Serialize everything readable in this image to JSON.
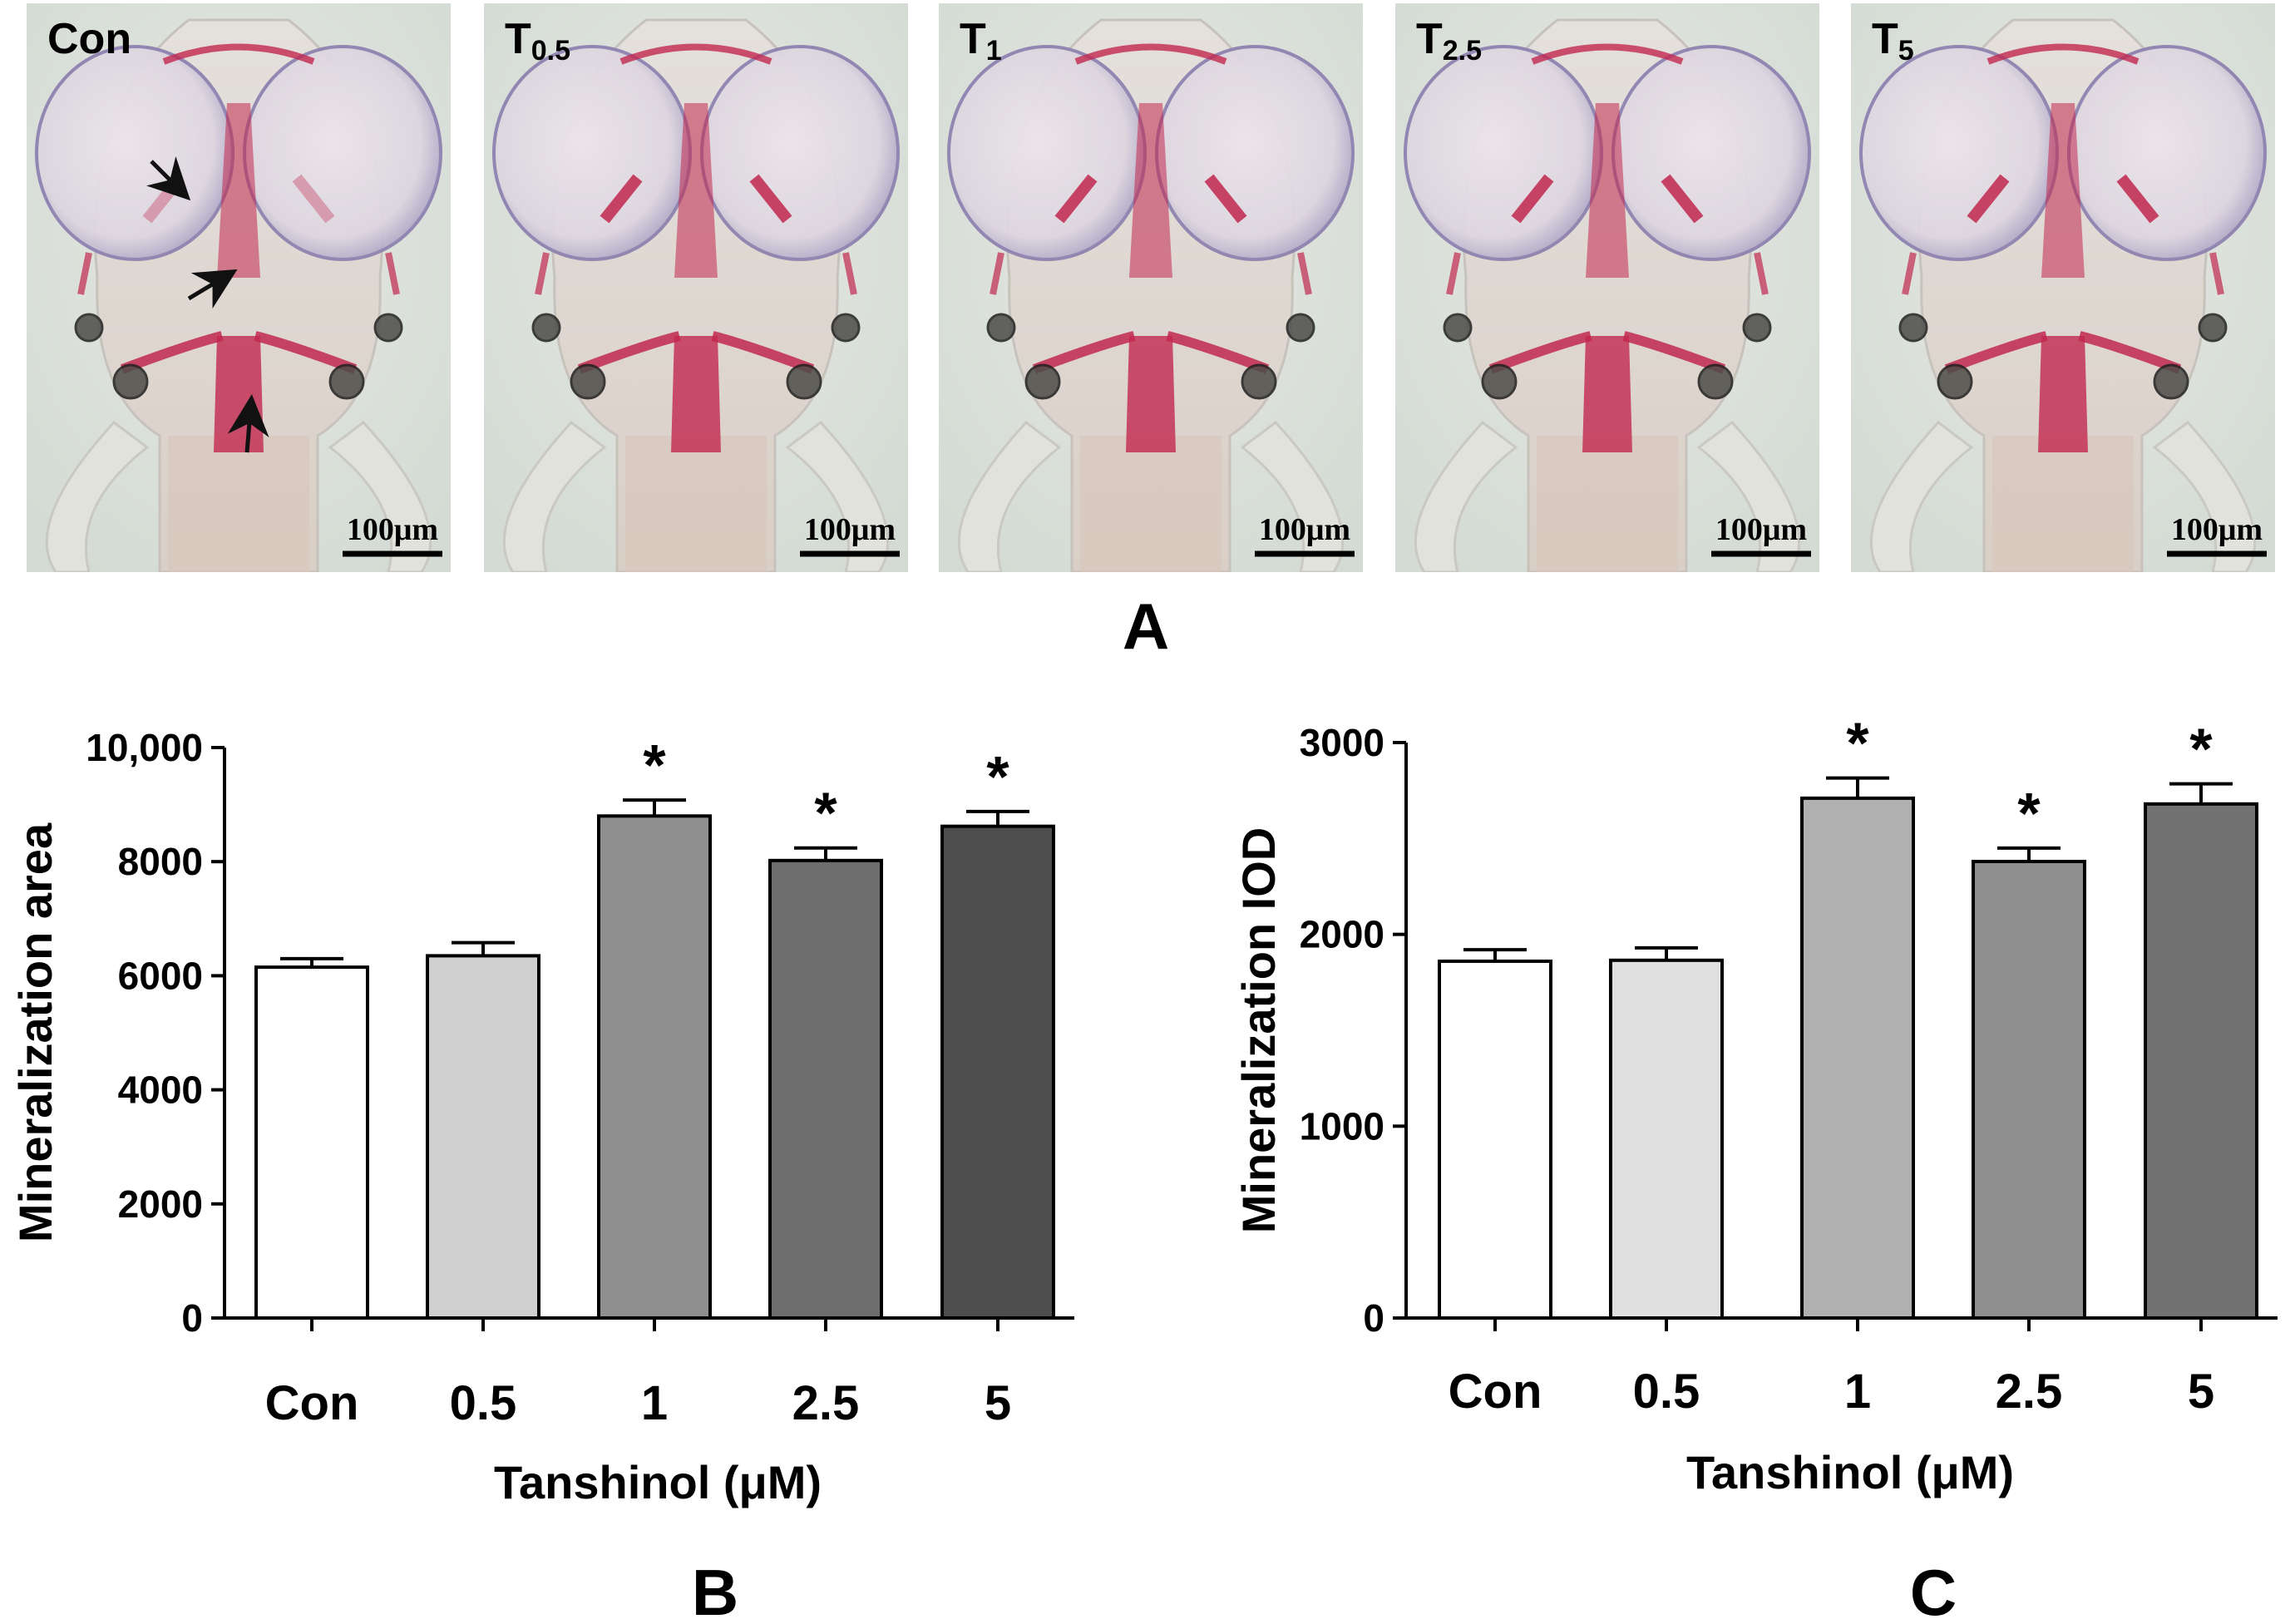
{
  "panel_a": {
    "letter": "A",
    "images": [
      {
        "label": "Con",
        "sub": "",
        "scale": "100μm",
        "arrows": true
      },
      {
        "label": "T",
        "sub": "0.5",
        "scale": "100μm",
        "arrows": false
      },
      {
        "label": "T",
        "sub": "1",
        "scale": "100μm",
        "arrows": false
      },
      {
        "label": "T",
        "sub": "2.5",
        "scale": "100μm",
        "arrows": false
      },
      {
        "label": "T",
        "sub": "5",
        "scale": "100μm",
        "arrows": false
      }
    ],
    "colors": {
      "background": "#dfe4dd",
      "bone_stain": "#c2284f",
      "eye": "#e3dfe6",
      "eye_rim": "#8e83b0",
      "otolith": "#4c4c48"
    }
  },
  "chart_data": [
    {
      "type": "bar",
      "letter": "B",
      "categories": [
        "Con",
        "0.5",
        "1",
        "2.5",
        "5"
      ],
      "values": [
        6150,
        6350,
        8800,
        8020,
        8620
      ],
      "errors": [
        150,
        230,
        280,
        220,
        260
      ],
      "significant": [
        false,
        false,
        true,
        true,
        true
      ],
      "significance_marker": "*",
      "bar_colors": [
        "#ffffff",
        "#cfcfcf",
        "#8f8f8f",
        "#6e6e6e",
        "#4d4d4d"
      ],
      "ylim": [
        0,
        10000
      ],
      "yticks": [
        0,
        2000,
        4000,
        6000,
        8000,
        10000
      ],
      "ytick_labels": [
        "0",
        "2000",
        "4000",
        "6000",
        "8000",
        "10,000"
      ],
      "ylabel": "Mineralization area",
      "xlabel": "Tanshinol (μM)"
    },
    {
      "type": "bar",
      "letter": "C",
      "categories": [
        "Con",
        "0.5",
        "1",
        "2.5",
        "5"
      ],
      "values": [
        1860,
        1865,
        2710,
        2380,
        2680
      ],
      "errors": [
        60,
        65,
        105,
        70,
        105
      ],
      "significant": [
        false,
        false,
        true,
        true,
        true
      ],
      "significance_marker": "*",
      "bar_colors": [
        "#ffffff",
        "#e0e0e0",
        "#b0b0b0",
        "#8f8f8f",
        "#727272"
      ],
      "ylim": [
        0,
        3000
      ],
      "yticks": [
        0,
        1000,
        2000,
        3000
      ],
      "ytick_labels": [
        "0",
        "1000",
        "2000",
        "3000"
      ],
      "ylabel": "Mineralization IOD",
      "xlabel": "Tanshinol (μM)"
    }
  ]
}
